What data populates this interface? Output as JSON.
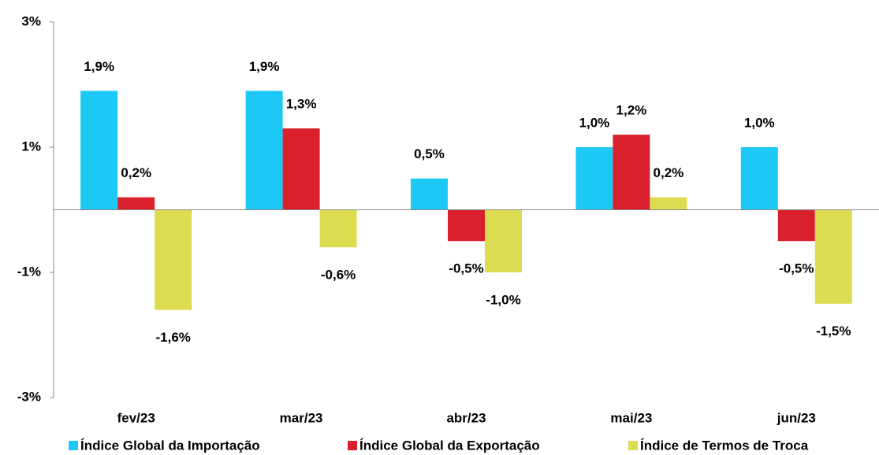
{
  "chart_data": {
    "type": "bar",
    "categories": [
      "fev/23",
      "mar/23",
      "abr/23",
      "mai/23",
      "jun/23"
    ],
    "series": [
      {
        "name": "Índice Global da Importação",
        "color": "#1cc9f4",
        "values": [
          1.9,
          1.9,
          0.5,
          1.0,
          1.0
        ],
        "value_labels": [
          "1,9%",
          "1,9%",
          "0,5%",
          "1,0%",
          "1,0%"
        ]
      },
      {
        "name": "Índice Global da Exportação",
        "color": "#d9202c",
        "values": [
          0.2,
          1.3,
          -0.5,
          1.2,
          -0.5
        ],
        "value_labels": [
          "0,2%",
          "1,3%",
          "-0,5%",
          "1,2%",
          "-0,5%"
        ]
      },
      {
        "name": "Índice de Termos de Troca",
        "color": "#dcdc50",
        "values": [
          -1.6,
          -0.6,
          -1.0,
          0.2,
          -1.5
        ],
        "value_labels": [
          "-1,6%",
          "-0,6%",
          "-1,0%",
          "0,2%",
          "-1,5%"
        ]
      }
    ],
    "ylim": [
      -3,
      3
    ],
    "yticks": [
      {
        "value": -3,
        "label": "-3%"
      },
      {
        "value": -1,
        "label": "-1%"
      },
      {
        "value": 1,
        "label": "1%"
      },
      {
        "value": 3,
        "label": "3%"
      }
    ],
    "grid": false,
    "legend": "bottom"
  }
}
